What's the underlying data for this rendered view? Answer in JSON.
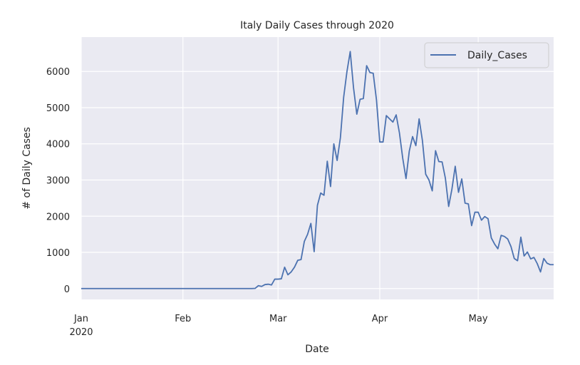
{
  "chart_data": {
    "type": "line",
    "title": "Italy Daily Cases through 2020",
    "xlabel": "Date",
    "ylabel": "# of Daily Cases",
    "xlim": [
      "2020-01-01",
      "2020-05-24"
    ],
    "ylim": [
      -300,
      6950
    ],
    "y_ticks": [
      0,
      1000,
      2000,
      3000,
      4000,
      5000,
      6000
    ],
    "x_ticks": [
      {
        "date": "2020-01-01",
        "label": "Jan",
        "sublabel": "2020"
      },
      {
        "date": "2020-02-01",
        "label": "Feb",
        "sublabel": ""
      },
      {
        "date": "2020-03-01",
        "label": "Mar",
        "sublabel": ""
      },
      {
        "date": "2020-04-01",
        "label": "Apr",
        "sublabel": ""
      },
      {
        "date": "2020-05-01",
        "label": "May",
        "sublabel": ""
      }
    ],
    "grid": true,
    "legend_position": "top-right",
    "colors": {
      "background": "#eaeaf2",
      "grid": "#ffffff",
      "line": "#4c72b0"
    },
    "series": [
      {
        "name": "Daily_Cases",
        "points": [
          [
            "2020-01-01",
            0
          ],
          [
            "2020-02-22",
            0
          ],
          [
            "2020-02-23",
            5
          ],
          [
            "2020-02-24",
            80
          ],
          [
            "2020-02-25",
            60
          ],
          [
            "2020-02-26",
            110
          ],
          [
            "2020-02-27",
            120
          ],
          [
            "2020-02-28",
            100
          ],
          [
            "2020-02-29",
            260
          ],
          [
            "2020-03-01",
            260
          ],
          [
            "2020-03-02",
            270
          ],
          [
            "2020-03-03",
            590
          ],
          [
            "2020-03-04",
            380
          ],
          [
            "2020-03-05",
            460
          ],
          [
            "2020-03-06",
            590
          ],
          [
            "2020-03-07",
            780
          ],
          [
            "2020-03-08",
            800
          ],
          [
            "2020-03-09",
            1300
          ],
          [
            "2020-03-10",
            1500
          ],
          [
            "2020-03-11",
            1800
          ],
          [
            "2020-03-12",
            1020
          ],
          [
            "2020-03-13",
            2300
          ],
          [
            "2020-03-14",
            2640
          ],
          [
            "2020-03-15",
            2580
          ],
          [
            "2020-03-16",
            3520
          ],
          [
            "2020-03-17",
            2820
          ],
          [
            "2020-03-18",
            4000
          ],
          [
            "2020-03-19",
            3540
          ],
          [
            "2020-03-20",
            4170
          ],
          [
            "2020-03-21",
            5290
          ],
          [
            "2020-03-22",
            6000
          ],
          [
            "2020-03-23",
            6550
          ],
          [
            "2020-03-24",
            5550
          ],
          [
            "2020-03-25",
            4820
          ],
          [
            "2020-03-26",
            5230
          ],
          [
            "2020-03-27",
            5250
          ],
          [
            "2020-03-28",
            6160
          ],
          [
            "2020-03-29",
            5970
          ],
          [
            "2020-03-30",
            5950
          ],
          [
            "2020-03-31",
            5210
          ],
          [
            "2020-04-01",
            4050
          ],
          [
            "2020-04-02",
            4050
          ],
          [
            "2020-04-03",
            4780
          ],
          [
            "2020-04-04",
            4690
          ],
          [
            "2020-04-05",
            4600
          ],
          [
            "2020-04-06",
            4800
          ],
          [
            "2020-04-07",
            4300
          ],
          [
            "2020-04-08",
            3600
          ],
          [
            "2020-04-09",
            3040
          ],
          [
            "2020-04-10",
            3800
          ],
          [
            "2020-04-11",
            4200
          ],
          [
            "2020-04-12",
            3950
          ],
          [
            "2020-04-13",
            4690
          ],
          [
            "2020-04-14",
            4090
          ],
          [
            "2020-04-15",
            3160
          ],
          [
            "2020-04-16",
            3000
          ],
          [
            "2020-04-17",
            2700
          ],
          [
            "2020-04-18",
            3810
          ],
          [
            "2020-04-19",
            3510
          ],
          [
            "2020-04-20",
            3500
          ],
          [
            "2020-04-21",
            3050
          ],
          [
            "2020-04-22",
            2270
          ],
          [
            "2020-04-23",
            2750
          ],
          [
            "2020-04-24",
            3380
          ],
          [
            "2020-04-25",
            2660
          ],
          [
            "2020-04-26",
            3030
          ],
          [
            "2020-04-27",
            2360
          ],
          [
            "2020-04-28",
            2340
          ],
          [
            "2020-04-29",
            1740
          ],
          [
            "2020-04-30",
            2110
          ],
          [
            "2020-05-01",
            2110
          ],
          [
            "2020-05-02",
            1890
          ],
          [
            "2020-05-03",
            1990
          ],
          [
            "2020-05-04",
            1930
          ],
          [
            "2020-05-05",
            1400
          ],
          [
            "2020-05-06",
            1230
          ],
          [
            "2020-05-07",
            1100
          ],
          [
            "2020-05-08",
            1470
          ],
          [
            "2020-05-09",
            1440
          ],
          [
            "2020-05-10",
            1370
          ],
          [
            "2020-05-11",
            1160
          ],
          [
            "2020-05-12",
            830
          ],
          [
            "2020-05-13",
            770
          ],
          [
            "2020-05-14",
            1420
          ],
          [
            "2020-05-15",
            900
          ],
          [
            "2020-05-16",
            1010
          ],
          [
            "2020-05-17",
            820
          ],
          [
            "2020-05-18",
            860
          ],
          [
            "2020-05-19",
            690
          ],
          [
            "2020-05-20",
            460
          ],
          [
            "2020-05-21",
            830
          ],
          [
            "2020-05-22",
            700
          ],
          [
            "2020-05-23",
            660
          ],
          [
            "2020-05-24",
            660
          ]
        ]
      }
    ]
  }
}
